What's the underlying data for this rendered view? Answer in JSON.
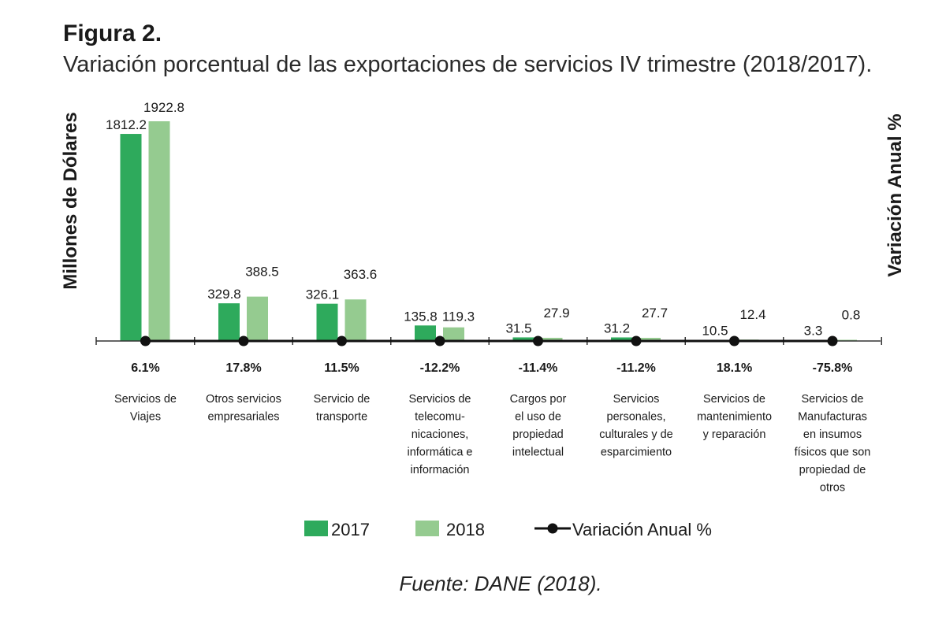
{
  "figure": {
    "label": "Figura 2.",
    "title": "Variación porcentual de las exportaciones de servicios IV trimestre (2018/2017).",
    "source": "Fuente: DANE (2018)."
  },
  "colors": {
    "series_2017": "#2eaa5c",
    "series_2018": "#95cb90",
    "line": "#111111"
  },
  "chart_data": {
    "type": "bar",
    "ylabel": "Millones de Dólares",
    "y2label": "Variación Anual %",
    "categories": [
      [
        "Servicios de",
        "Viajes"
      ],
      [
        "Otros servicios",
        "empresariales"
      ],
      [
        "Servicio de",
        "transporte"
      ],
      [
        "Servicios de",
        "telecomu-",
        "nicaciones,",
        "informática e",
        "información"
      ],
      [
        "Cargos por",
        "el uso de",
        "propiedad",
        "intelectual"
      ],
      [
        "Servicios",
        "personales,",
        "culturales y de",
        "esparcimiento"
      ],
      [
        "Servicios de",
        "mantenimiento",
        "y reparación"
      ],
      [
        "Servicios de",
        "Manufacturas",
        "en insumos",
        "físicos que son",
        "propiedad de",
        "otros"
      ]
    ],
    "series": [
      {
        "name": "2017",
        "values": [
          1812.2,
          329.8,
          326.1,
          135.8,
          31.5,
          31.2,
          10.5,
          3.3
        ],
        "labels": [
          "1812.2",
          "329.8",
          "326.1",
          "135.8",
          "31.5",
          "31.2",
          "10.5",
          "3.3"
        ]
      },
      {
        "name": "2018",
        "values": [
          1922.8,
          388.5,
          363.6,
          119.3,
          27.9,
          27.7,
          12.4,
          0.8
        ],
        "labels": [
          "1922.8",
          "388.5",
          "363.6",
          "119.3",
          "27.9",
          "27.7",
          "12.4",
          "0.8"
        ]
      }
    ],
    "line_series": {
      "name": "Variación Anual %",
      "values": [
        6.1,
        17.8,
        11.5,
        -12.2,
        -11.4,
        -11.2,
        18.1,
        -75.8
      ],
      "labels": [
        "6.1%",
        "17.8%",
        "11.5%",
        "-12.2%",
        "-11.4%",
        "-11.2%",
        "18.1%",
        "-75.8%"
      ]
    },
    "ylim": [
      0,
      1922.8
    ],
    "legend_position": "bottom-center",
    "grid": false
  }
}
